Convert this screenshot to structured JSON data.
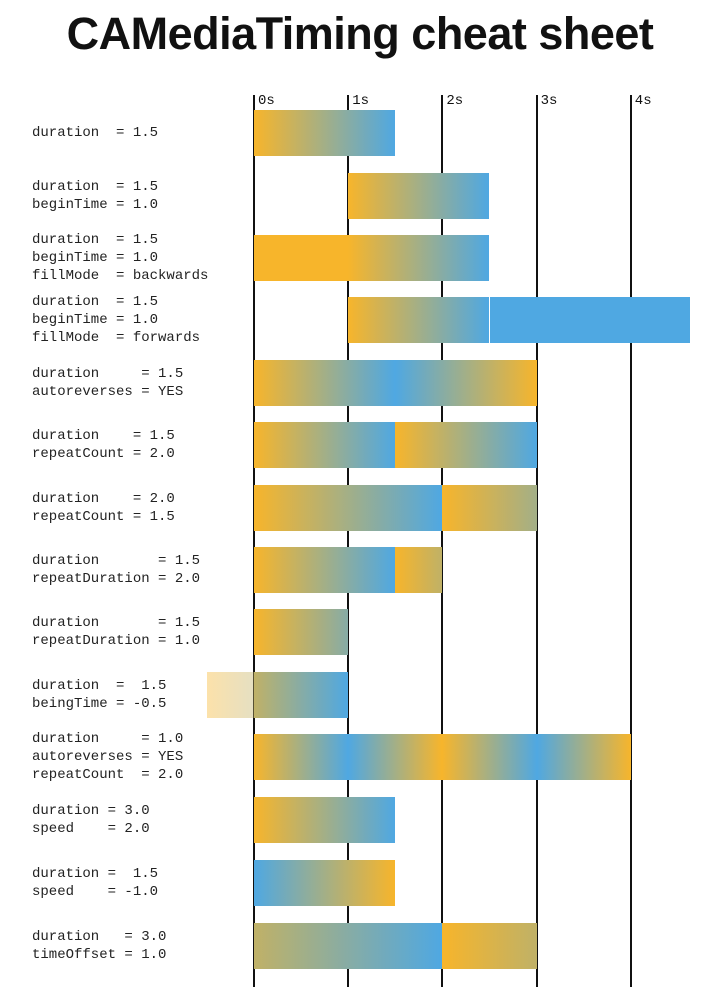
{
  "title": "CAMediaTiming cheat sheet",
  "colors": {
    "start": "#F7B52B",
    "end": "#4FA8E2",
    "axis": "#111111"
  },
  "axis": {
    "ticks": [
      "0s",
      "1s",
      "2s",
      "3s",
      "4s"
    ]
  },
  "rows": [
    {
      "lines": [
        "duration  = 1.5"
      ],
      "segments": [
        [
          0,
          1.5,
          0,
          1
        ]
      ]
    },
    {
      "lines": [
        "duration  = 1.5",
        "beginTime = 1.0"
      ],
      "segments": [
        [
          1,
          2.5,
          0,
          1
        ]
      ]
    },
    {
      "lines": [
        "duration  = 1.5",
        "beginTime = 1.0",
        "fillMode  = backwards"
      ],
      "segments": [
        [
          0,
          1,
          0,
          0
        ],
        [
          1,
          2.5,
          0,
          1
        ]
      ]
    },
    {
      "lines": [
        "duration  = 1.5",
        "beginTime = 1.0",
        "fillMode  = forwards"
      ],
      "segments": [
        [
          1,
          2.5,
          0,
          1
        ],
        [
          2.5,
          4.63,
          1,
          1
        ]
      ]
    },
    {
      "lines": [
        "duration     = 1.5",
        "autoreverses = YES"
      ],
      "segments": [
        [
          0,
          1.5,
          0,
          1
        ],
        [
          1.5,
          3,
          1,
          0
        ]
      ]
    },
    {
      "lines": [
        "duration    = 1.5",
        "repeatCount = 2.0"
      ],
      "segments": [
        [
          0,
          1.5,
          0,
          1
        ],
        [
          1.5,
          3,
          0,
          1
        ]
      ]
    },
    {
      "lines": [
        "duration    = 2.0",
        "repeatCount = 1.5"
      ],
      "segments": [
        [
          0,
          2,
          0,
          1
        ],
        [
          2,
          3,
          0,
          0.5
        ]
      ]
    },
    {
      "lines": [
        "duration       = 1.5",
        "repeatDuration = 2.0"
      ],
      "segments": [
        [
          0,
          1.5,
          0,
          1
        ],
        [
          1.5,
          2,
          0,
          0.33
        ]
      ]
    },
    {
      "lines": [
        "duration       = 1.5",
        "repeatDuration = 1.0"
      ],
      "segments": [
        [
          0,
          1,
          0,
          0.67
        ]
      ]
    },
    {
      "lines": [
        "duration  =  1.5",
        "beingTime = -0.5"
      ],
      "segments": [
        [
          -0.5,
          0,
          0,
          0.33,
          0.4
        ],
        [
          0,
          1,
          0.33,
          1
        ]
      ]
    },
    {
      "lines": [
        "duration     = 1.0",
        "autoreverses = YES",
        "repeatCount  = 2.0"
      ],
      "segments": [
        [
          0,
          1,
          0,
          1
        ],
        [
          1,
          2,
          1,
          0
        ],
        [
          2,
          3,
          0,
          1
        ],
        [
          3,
          4,
          1,
          0
        ]
      ]
    },
    {
      "lines": [
        "duration = 3.0",
        "speed    = 2.0"
      ],
      "segments": [
        [
          0,
          1.5,
          0,
          1
        ]
      ]
    },
    {
      "lines": [
        "duration =  1.5",
        "speed    = -1.0"
      ],
      "segments": [
        [
          0,
          1.5,
          1,
          0
        ]
      ]
    },
    {
      "lines": [
        "duration   = 3.0",
        "timeOffset = 1.0"
      ],
      "segments": [
        [
          0,
          2,
          0.33,
          1
        ],
        [
          2,
          3,
          0,
          0.33
        ]
      ]
    }
  ]
}
